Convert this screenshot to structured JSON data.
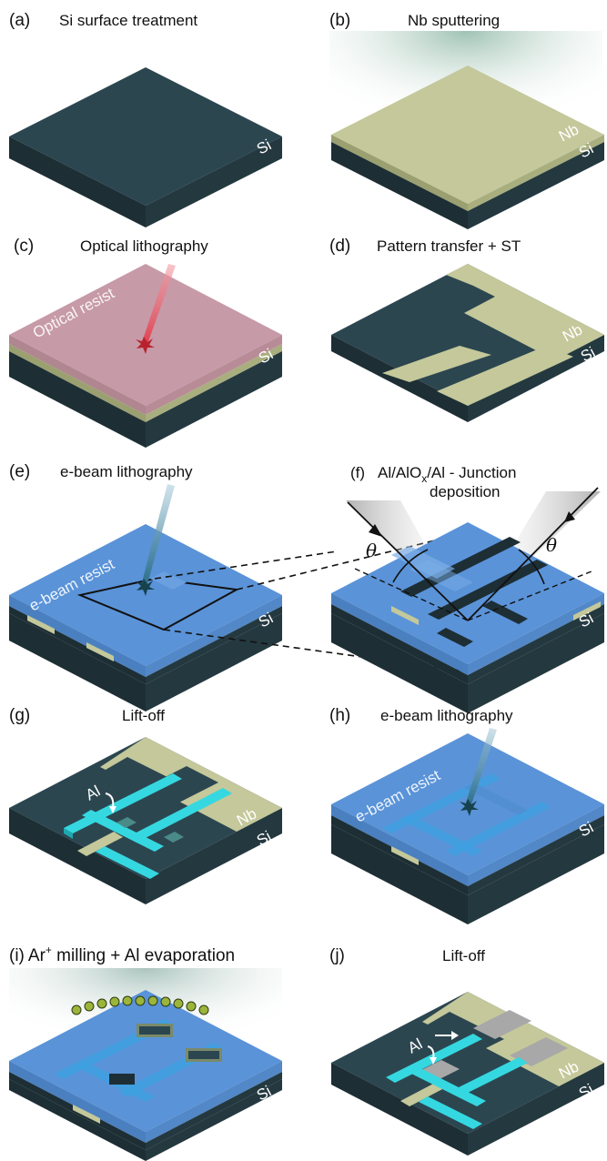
{
  "colors": {
    "si_top": "#2c4650",
    "si_side_dark": "#1d2e35",
    "si_side_light": "#24383f",
    "nb": "#c4c89a",
    "nb_side": "#9aa070",
    "resist_optical": "#c79aa8",
    "resist_ebeam": "#5a93d8",
    "al_wire": "#35d8e0",
    "al_pad": "#a8a8a8",
    "beam_red": "#e8505a",
    "beam_blue": "#3b7f9a",
    "ion_dot": "#9ab53a"
  },
  "panels": [
    {
      "id": "a",
      "label": "(a)",
      "title": "Si surface treatment",
      "layers": [
        "Si"
      ]
    },
    {
      "id": "b",
      "label": "(b)",
      "title": "Nb sputtering",
      "layers": [
        "Nb",
        "Si"
      ]
    },
    {
      "id": "c",
      "label": "(c)",
      "title": "Optical lithography",
      "layers": [
        "Si"
      ],
      "inner_label": "Optical resist"
    },
    {
      "id": "d",
      "label": "(d)",
      "title": "Pattern transfer + ST",
      "layers": [
        "Nb",
        "Si"
      ]
    },
    {
      "id": "e",
      "label": "(e)",
      "title": "e-beam lithography",
      "layers": [
        "Si"
      ],
      "inner_label": "e-beam resist"
    },
    {
      "id": "f",
      "label": "(f)",
      "title_line1": "Al/AlO",
      "title_sub": "x",
      "title_line1_rest": "/Al - Junction",
      "title_line2": "deposition",
      "layers": [
        "Si"
      ],
      "angle_symbol": "θ"
    },
    {
      "id": "g",
      "label": "(g)",
      "title": "Lift-off",
      "layers": [
        "Nb",
        "Si"
      ],
      "arrow_label": "Al"
    },
    {
      "id": "h",
      "label": "(h)",
      "title": "e-beam lithography",
      "layers": [
        "Si"
      ],
      "inner_label": "e-beam resist"
    },
    {
      "id": "i",
      "label": "(i)",
      "title_pre": "Ar",
      "title_sup": "+",
      "title_post": " milling + Al evaporation",
      "layers": [
        "Si"
      ]
    },
    {
      "id": "j",
      "label": "(j)",
      "title": "Lift-off",
      "layers": [
        "Nb",
        "Si"
      ],
      "arrow_label": "Al"
    }
  ]
}
